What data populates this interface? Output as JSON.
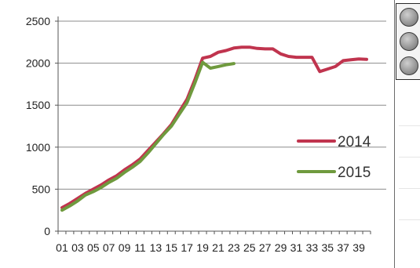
{
  "chart_data": {
    "type": "line",
    "title": "",
    "xlabel": "",
    "ylabel": "",
    "x": [
      1,
      2,
      3,
      4,
      5,
      6,
      7,
      8,
      9,
      10,
      11,
      12,
      13,
      14,
      15,
      16,
      17,
      18,
      19,
      20,
      21,
      22,
      23,
      24,
      25,
      26,
      27,
      28,
      29,
      30,
      31,
      32,
      33,
      34,
      35,
      36,
      37,
      38,
      39,
      40
    ],
    "x_tick_labels": [
      "01",
      "03",
      "05",
      "07",
      "09",
      "11",
      "13",
      "15",
      "17",
      "19",
      "21",
      "23",
      "25",
      "27",
      "29",
      "31",
      "33",
      "35",
      "37",
      "39"
    ],
    "ylim": [
      0,
      2500
    ],
    "y_ticks": [
      0,
      500,
      1000,
      1500,
      2000,
      2500
    ],
    "grid": true,
    "legend_position": "right",
    "series": [
      {
        "name": "2014",
        "color": "#c0344e",
        "values": [
          280,
          330,
          390,
          450,
          500,
          550,
          610,
          660,
          730,
          790,
          860,
          960,
          1060,
          1160,
          1270,
          1420,
          1570,
          1800,
          2060,
          2080,
          2130,
          2150,
          2180,
          2190,
          2190,
          2175,
          2170,
          2170,
          2110,
          2080,
          2070,
          2070,
          2070,
          1900,
          1930,
          1960,
          2030,
          2040,
          2050,
          2045
        ]
      },
      {
        "name": "2015",
        "color": "#6f9a3e",
        "values": [
          250,
          300,
          360,
          430,
          470,
          520,
          580,
          630,
          700,
          760,
          830,
          930,
          1040,
          1150,
          1250,
          1390,
          1530,
          1760,
          2010,
          1940,
          1960,
          1980,
          1995,
          null,
          null,
          null,
          null,
          null,
          null,
          null,
          null,
          null,
          null,
          null,
          null,
          null,
          null,
          null,
          null,
          null
        ]
      }
    ]
  },
  "side_panel": {
    "icon": "circle-buttons"
  }
}
